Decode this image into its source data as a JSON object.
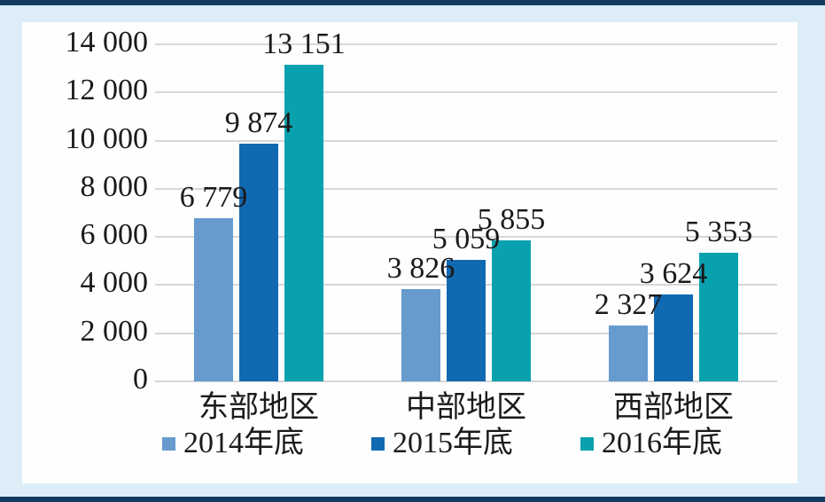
{
  "frame": {
    "background_color": "#dcedf8",
    "border_color": "#123a5f",
    "panel_color": "#fefefe",
    "gridline_color": "#d6d7d8"
  },
  "chart_data": {
    "type": "bar",
    "title": "",
    "categories": [
      "东部地区",
      "中部地区",
      "西部地区"
    ],
    "series": [
      {
        "name": "2014年底",
        "color": "#679bcd",
        "values": [
          6779,
          3826,
          2327
        ]
      },
      {
        "name": "2015年底",
        "color": "#1169b2",
        "values": [
          9874,
          5059,
          3624
        ]
      },
      {
        "name": "2016年底",
        "color": "#09a1ae",
        "values": [
          13151,
          5855,
          5353
        ]
      }
    ],
    "data_labels": {
      "2014年底": [
        "6 779",
        "3 826",
        "2 327"
      ],
      "2015年底": [
        "9 874",
        "5 059",
        "3 624"
      ],
      "2016年底": [
        "13 151",
        "5 855",
        "5 353"
      ]
    },
    "ylim": [
      0,
      14000
    ],
    "ytick_step": 2000,
    "ytick_labels": [
      "0",
      "2 000",
      "4 000",
      "6 000",
      "8 000",
      "10 000",
      "12 000",
      "14 000"
    ],
    "xlabel": "",
    "ylabel": "",
    "grid": "horizontal",
    "legend_position": "bottom"
  }
}
